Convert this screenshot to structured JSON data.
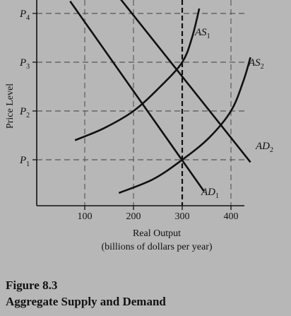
{
  "figure": {
    "number": "Figure 8.3",
    "title": "Aggregate Supply and Demand"
  },
  "chart_data": {
    "type": "line",
    "xlabel": "Real Output",
    "xlabel_sub": "(billions of dollars per year)",
    "ylabel": "Price Level",
    "x_ticks": [
      100,
      200,
      300,
      400
    ],
    "y_ticks": [
      {
        "name": "P",
        "sub": "1",
        "level": 1
      },
      {
        "name": "P",
        "sub": "2",
        "level": 2
      },
      {
        "name": "P",
        "sub": "3",
        "level": 3
      },
      {
        "name": "P",
        "sub": "4",
        "level": 4
      }
    ],
    "xlim": [
      40,
      430
    ],
    "ylim": [
      -0.1,
      4.1
    ],
    "grid": "dashed at tick values; heavy dashed vertical at 300",
    "series": [
      {
        "name": "AS",
        "sub": "1",
        "kind": "supply",
        "points": [
          [
            80,
            1.4
          ],
          [
            140,
            1.65
          ],
          [
            200,
            2.0
          ],
          [
            255,
            2.5
          ],
          [
            300,
            3.0
          ],
          [
            320,
            3.5
          ],
          [
            335,
            4.1
          ]
        ]
      },
      {
        "name": "AS",
        "sub": "2",
        "kind": "supply",
        "points": [
          [
            170,
            0.32
          ],
          [
            240,
            0.6
          ],
          [
            300,
            1.0
          ],
          [
            355,
            1.45
          ],
          [
            400,
            2.0
          ],
          [
            425,
            2.6
          ],
          [
            440,
            3.1
          ]
        ]
      },
      {
        "name": "AD",
        "sub": "1",
        "kind": "demand",
        "points": [
          [
            70,
            4.25
          ],
          [
            345,
            0.35
          ]
        ]
      },
      {
        "name": "AD",
        "sub": "2",
        "kind": "demand",
        "points": [
          [
            165,
            4.4
          ],
          [
            440,
            0.95
          ]
        ]
      }
    ],
    "line_color": "#111111",
    "grid_color": "#555555"
  }
}
